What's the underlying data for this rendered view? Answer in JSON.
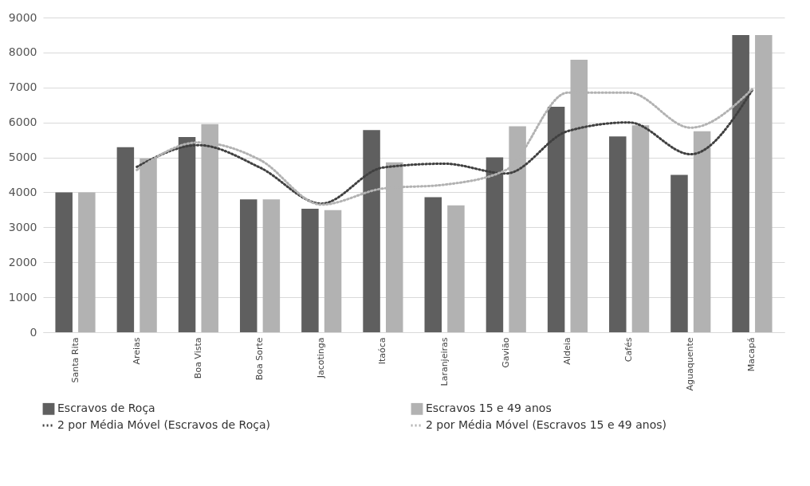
{
  "chart_data": {
    "type": "bar",
    "categories": [
      "Santa Rita",
      "Areias",
      "Boa Vista",
      "Boa Sorte",
      "Jacotinga",
      "Itaóca",
      "Laranjeiras",
      "Gavião",
      "Aldeia",
      "Cafés",
      "Aguaquente",
      "Macapá"
    ],
    "series": [
      {
        "name": "Escravos de Roça",
        "color": "#5f5f5f",
        "values": [
          4000,
          5290,
          5580,
          3800,
          3530,
          5780,
          3860,
          5000,
          6450,
          5600,
          4500,
          8500
        ]
      },
      {
        "name": "Escravos 15 e 49 anos",
        "color": "#b2b2b2",
        "values": [
          4000,
          4970,
          5950,
          3800,
          3490,
          4860,
          3630,
          5890,
          7790,
          5920,
          5750,
          8500
        ]
      },
      {
        "name": "2 por Média Móvel (Escravos de Roça)",
        "type": "line",
        "line_style": "dotted",
        "color": "#404040",
        "values": [
          null,
          4730,
          5350,
          4710,
          3680,
          4710,
          4820,
          4540,
          5750,
          6000,
          5090,
          6920
        ]
      },
      {
        "name": "2 por Média Móvel (Escravos 15 e 49 anos)",
        "type": "line",
        "line_style": "dotted",
        "color": "#b2b2b2",
        "values": [
          null,
          4640,
          5430,
          4930,
          3650,
          4110,
          4220,
          4640,
          6850,
          6850,
          5850,
          6950
        ]
      }
    ],
    "ylim": [
      0,
      9000
    ],
    "yticks": [
      0,
      1000,
      2000,
      3000,
      4000,
      5000,
      6000,
      7000,
      8000,
      9000
    ],
    "grid": "y",
    "legend": "bottom"
  }
}
